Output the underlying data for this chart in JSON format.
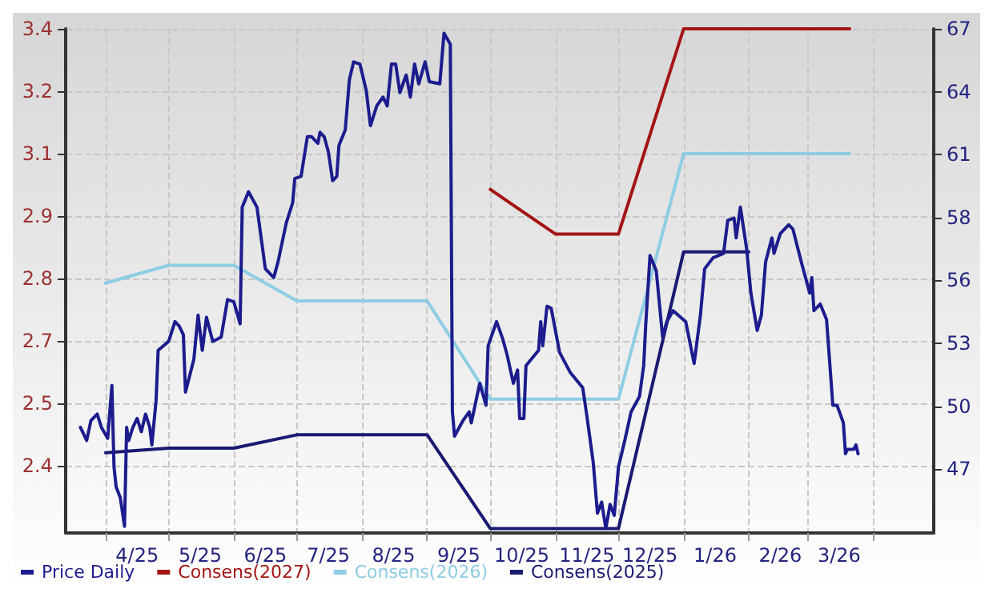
{
  "chart_data": {
    "type": "line",
    "xlim": [
      "2025-03-13",
      "2026-04-30"
    ],
    "ylim": [
      2.23,
      3.36
    ],
    "y2lim": [
      44.1,
      67
    ],
    "xticks": [
      {
        "value": "2025-04-01",
        "label": null
      },
      {
        "value": "2025-04-16",
        "label": "4/25"
      },
      {
        "value": "2025-05-01",
        "label": null
      },
      {
        "value": "2025-05-16",
        "label": "5/25"
      },
      {
        "value": "2025-06-01",
        "label": null
      },
      {
        "value": "2025-06-16",
        "label": "6/25"
      },
      {
        "value": "2025-07-01",
        "label": null
      },
      {
        "value": "2025-07-16",
        "label": "7/25"
      },
      {
        "value": "2025-08-01",
        "label": null
      },
      {
        "value": "2025-08-16",
        "label": "8/25"
      },
      {
        "value": "2025-09-01",
        "label": null
      },
      {
        "value": "2025-09-16",
        "label": "9/25"
      },
      {
        "value": "2025-10-01",
        "label": null
      },
      {
        "value": "2025-10-16",
        "label": "10/25"
      },
      {
        "value": "2025-11-01",
        "label": null
      },
      {
        "value": "2025-11-16",
        "label": "11/25"
      },
      {
        "value": "2025-12-01",
        "label": null
      },
      {
        "value": "2025-12-16",
        "label": "12/25"
      },
      {
        "value": "2026-01-01",
        "label": null
      },
      {
        "value": "2026-01-16",
        "label": "1/26"
      },
      {
        "value": "2026-02-01",
        "label": null
      },
      {
        "value": "2026-02-16",
        "label": "2/26"
      },
      {
        "value": "2026-03-01",
        "label": null
      },
      {
        "value": "2026-03-16",
        "label": "3/26"
      },
      {
        "value": "2026-04-01",
        "label": null
      }
    ],
    "yticks": [
      {
        "value": 2.38,
        "label": "2.4"
      },
      {
        "value": 2.52,
        "label": "2.5"
      },
      {
        "value": 2.66,
        "label": "2.7"
      },
      {
        "value": 2.8,
        "label": "2.8"
      },
      {
        "value": 2.94,
        "label": "2.9"
      },
      {
        "value": 3.08,
        "label": "3.1"
      },
      {
        "value": 3.22,
        "label": "3.2"
      },
      {
        "value": 3.36,
        "label": "3.4"
      }
    ],
    "y2ticks": [
      47,
      {
        "value": 49.857,
        "label": "50"
      },
      {
        "value": 52.714,
        "label": "53"
      },
      {
        "value": 55.571,
        "label": "56"
      },
      {
        "value": 58.429,
        "label": "58"
      },
      {
        "value": 61.286,
        "label": "61"
      },
      {
        "value": 64.143,
        "label": "64"
      },
      67
    ],
    "grid": true,
    "legend": "bottom left",
    "marker": "none",
    "line_style": "solid",
    "series": [
      {
        "name": "Price Daily",
        "color": "#1c1c8e",
        "axis": "y2",
        "x": [
          "2025-03-20",
          "2025-03-23",
          "2025-03-25",
          "2025-03-28",
          "2025-03-30",
          "2025-04-02",
          "2025-04-04",
          "2025-04-05",
          "2025-04-06",
          "2025-04-08",
          "2025-04-10",
          "2025-04-11",
          "2025-04-12",
          "2025-04-14",
          "2025-04-16",
          "2025-04-18",
          "2025-04-20",
          "2025-04-22",
          "2025-04-23",
          "2025-04-25",
          "2025-04-26",
          "2025-05-01",
          "2025-05-04",
          "2025-05-06",
          "2025-05-08",
          "2025-05-09",
          "2025-05-13",
          "2025-05-15",
          "2025-05-17",
          "2025-05-19",
          "2025-05-22",
          "2025-05-26",
          "2025-05-29",
          "2025-06-01",
          "2025-06-04",
          "2025-06-05",
          "2025-06-08",
          "2025-06-12",
          "2025-06-14",
          "2025-06-16",
          "2025-06-20",
          "2025-06-22",
          "2025-06-26",
          "2025-06-29",
          "2025-06-30",
          "2025-07-03",
          "2025-07-06",
          "2025-07-08",
          "2025-07-11",
          "2025-07-12",
          "2025-07-14",
          "2025-07-16",
          "2025-07-18",
          "2025-07-20",
          "2025-07-21",
          "2025-07-24",
          "2025-07-26",
          "2025-07-28",
          "2025-07-31",
          "2025-08-03",
          "2025-08-05",
          "2025-08-08",
          "2025-08-11",
          "2025-08-13",
          "2025-08-15",
          "2025-08-17",
          "2025-08-19",
          "2025-08-22",
          "2025-08-24",
          "2025-08-26",
          "2025-08-28",
          "2025-08-31",
          "2025-09-02",
          "2025-09-07",
          "2025-09-09",
          "2025-09-12",
          "2025-09-13",
          "2025-09-14",
          "2025-09-18",
          "2025-09-21",
          "2025-09-22",
          "2025-09-26",
          "2025-09-29",
          "2025-09-30",
          "2025-10-04",
          "2025-10-07",
          "2025-10-09",
          "2025-10-12",
          "2025-10-14",
          "2025-10-15",
          "2025-10-17",
          "2025-10-18",
          "2025-10-24",
          "2025-10-25",
          "2025-10-26",
          "2025-10-28",
          "2025-10-30",
          "2025-11-03",
          "2025-11-08",
          "2025-11-14",
          "2025-11-16",
          "2025-11-19",
          "2025-11-21",
          "2025-11-23",
          "2025-11-25",
          "2025-11-27",
          "2025-11-29",
          "2025-12-01",
          "2025-12-04",
          "2025-12-07",
          "2025-12-11",
          "2025-12-13",
          "2025-12-14",
          "2025-12-16",
          "2025-12-19",
          "2025-12-22",
          "2025-12-24",
          "2025-12-27",
          "2026-01-02",
          "2026-01-06",
          "2026-01-09",
          "2026-01-11",
          "2026-01-15",
          "2026-01-20",
          "2026-01-22",
          "2026-01-25",
          "2026-01-26",
          "2026-01-28",
          "2026-01-31",
          "2026-02-02",
          "2026-02-05",
          "2026-02-07",
          "2026-02-09",
          "2026-02-12",
          "2026-02-13",
          "2026-02-16",
          "2026-02-20",
          "2026-02-22",
          "2026-02-26",
          "2026-03-02",
          "2026-03-03",
          "2026-03-04",
          "2026-03-07",
          "2026-03-10",
          "2026-03-13",
          "2026-03-15",
          "2026-03-18",
          "2026-03-19",
          "2026-03-20",
          "2026-03-23",
          "2026-03-24",
          "2026-03-25"
        ],
        "values": [
          48.9,
          48.3,
          49.2,
          49.5,
          48.9,
          48.4,
          50.8,
          47.1,
          46.2,
          45.7,
          44.4,
          48.9,
          48.3,
          48.9,
          49.3,
          48.7,
          49.5,
          48.9,
          48.1,
          50.1,
          52.4,
          52.8,
          53.7,
          53.5,
          53.1,
          50.5,
          52.0,
          54.0,
          52.4,
          53.9,
          52.8,
          53.0,
          54.7,
          54.6,
          53.6,
          58.9,
          59.6,
          58.9,
          57.5,
          56.1,
          55.7,
          56.4,
          58.2,
          59.1,
          60.2,
          60.3,
          62.1,
          62.1,
          61.8,
          62.3,
          62.1,
          61.4,
          60.1,
          60.3,
          61.7,
          62.4,
          64.7,
          65.5,
          65.4,
          64.2,
          62.6,
          63.5,
          63.9,
          63.5,
          65.4,
          65.4,
          64.1,
          64.9,
          63.9,
          65.4,
          64.5,
          65.5,
          64.6,
          64.5,
          66.8,
          66.3,
          49.6,
          48.5,
          49.2,
          49.6,
          49.1,
          50.9,
          49.9,
          52.6,
          53.7,
          52.9,
          52.2,
          50.9,
          51.5,
          49.3,
          49.3,
          51.7,
          52.4,
          53.7,
          52.6,
          54.4,
          54.3,
          52.3,
          51.4,
          50.7,
          49.4,
          47.3,
          45.0,
          45.5,
          44.3,
          45.4,
          44.9,
          47.1,
          48.3,
          49.6,
          50.3,
          51.7,
          53.6,
          56.7,
          56.0,
          53.0,
          53.7,
          54.2,
          53.7,
          51.8,
          54.0,
          56.1,
          56.6,
          56.8,
          58.3,
          58.4,
          57.5,
          58.9,
          57.0,
          55.0,
          53.3,
          54.0,
          56.4,
          57.5,
          56.8,
          57.7,
          58.1,
          57.9,
          56.4,
          55.0,
          55.7,
          54.2,
          54.5,
          53.8,
          49.9,
          49.9,
          49.1,
          47.7,
          47.9,
          47.9,
          48.1,
          47.7
        ]
      },
      {
        "name": "Consens(2027)",
        "color": "#a31515",
        "x": [
          "2025-10-01",
          "2025-11-01",
          "2025-12-01",
          "2026-01-01",
          "2026-03-21"
        ],
        "values": [
          3.0,
          2.9,
          2.9,
          3.36,
          3.36
        ]
      },
      {
        "name": "Consens(2026)",
        "color": "#8ecde2",
        "x": [
          "2025-04-01",
          "2025-05-01",
          "2025-06-01",
          "2025-07-01",
          "2025-09-01",
          "2025-10-01",
          "2025-12-01",
          "2026-01-01",
          "2026-03-21"
        ],
        "values": [
          2.79,
          2.83,
          2.83,
          2.75,
          2.75,
          2.53,
          2.53,
          3.08,
          3.08
        ]
      },
      {
        "name": "Consens(2025)",
        "color": "#1a1a72",
        "x": [
          "2025-04-01",
          "2025-05-01",
          "2025-06-01",
          "2025-07-01",
          "2025-09-01",
          "2025-10-01",
          "2025-12-01",
          "2026-01-01",
          "2026-02-01"
        ],
        "values": [
          2.41,
          2.42,
          2.42,
          2.45,
          2.45,
          2.24,
          2.24,
          2.86,
          2.86
        ]
      }
    ]
  }
}
